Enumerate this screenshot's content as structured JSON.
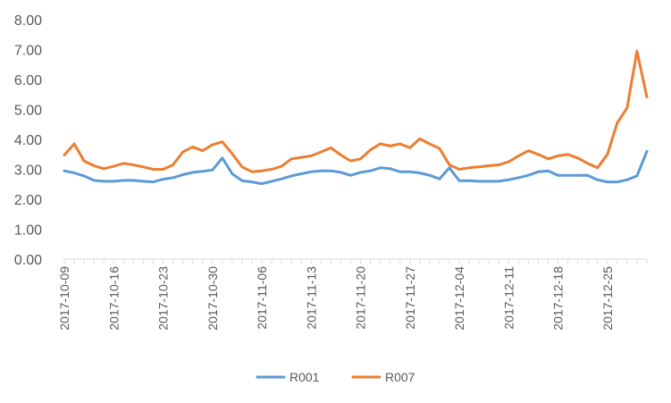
{
  "chart_data": {
    "type": "line",
    "title": "",
    "xlabel": "",
    "ylabel": "",
    "ylim": [
      0,
      8
    ],
    "y_ticks": [
      "0.00",
      "1.00",
      "2.00",
      "3.00",
      "4.00",
      "5.00",
      "6.00",
      "7.00",
      "8.00"
    ],
    "x_ticks": [
      "2017-10-09",
      "2017-10-16",
      "2017-10-23",
      "2017-10-30",
      "2017-11-06",
      "2017-11-13",
      "2017-11-20",
      "2017-11-27",
      "2017-12-04",
      "2017-12-11",
      "2017-12-18",
      "2017-12-25"
    ],
    "x": [
      "2017-10-09",
      "2017-10-10",
      "2017-10-11",
      "2017-10-12",
      "2017-10-13",
      "2017-10-16",
      "2017-10-17",
      "2017-10-18",
      "2017-10-19",
      "2017-10-20",
      "2017-10-23",
      "2017-10-24",
      "2017-10-25",
      "2017-10-26",
      "2017-10-27",
      "2017-10-30",
      "2017-10-31",
      "2017-11-01",
      "2017-11-02",
      "2017-11-03",
      "2017-11-06",
      "2017-11-07",
      "2017-11-08",
      "2017-11-09",
      "2017-11-10",
      "2017-11-13",
      "2017-11-14",
      "2017-11-15",
      "2017-11-16",
      "2017-11-17",
      "2017-11-20",
      "2017-11-21",
      "2017-11-22",
      "2017-11-23",
      "2017-11-24",
      "2017-11-27",
      "2017-11-28",
      "2017-11-29",
      "2017-11-30",
      "2017-12-01",
      "2017-12-04",
      "2017-12-05",
      "2017-12-06",
      "2017-12-07",
      "2017-12-08",
      "2017-12-11",
      "2017-12-12",
      "2017-12-13",
      "2017-12-14",
      "2017-12-15",
      "2017-12-18",
      "2017-12-19",
      "2017-12-20",
      "2017-12-21",
      "2017-12-22",
      "2017-12-25",
      "2017-12-26",
      "2017-12-27",
      "2017-12-28",
      "2017-12-29"
    ],
    "series": [
      {
        "name": "R001",
        "color": "#5B9BD5",
        "values": [
          2.95,
          2.88,
          2.78,
          2.63,
          2.6,
          2.6,
          2.63,
          2.63,
          2.6,
          2.58,
          2.67,
          2.72,
          2.82,
          2.9,
          2.93,
          2.98,
          3.38,
          2.85,
          2.62,
          2.58,
          2.52,
          2.6,
          2.68,
          2.78,
          2.85,
          2.92,
          2.95,
          2.95,
          2.9,
          2.8,
          2.9,
          2.95,
          3.05,
          3.02,
          2.92,
          2.92,
          2.88,
          2.8,
          2.68,
          3.05,
          2.62,
          2.62,
          2.6,
          2.6,
          2.6,
          2.65,
          2.72,
          2.8,
          2.92,
          2.95,
          2.8,
          2.8,
          2.8,
          2.8,
          2.65,
          2.58,
          2.58,
          2.65,
          2.78,
          3.6
        ]
      },
      {
        "name": "R007",
        "color": "#ED7D31",
        "values": [
          3.48,
          3.85,
          3.28,
          3.12,
          3.02,
          3.1,
          3.2,
          3.15,
          3.08,
          3.0,
          3.0,
          3.15,
          3.58,
          3.75,
          3.62,
          3.82,
          3.92,
          3.52,
          3.08,
          2.92,
          2.95,
          3.0,
          3.1,
          3.35,
          3.4,
          3.45,
          3.58,
          3.72,
          3.48,
          3.28,
          3.35,
          3.65,
          3.85,
          3.78,
          3.85,
          3.72,
          4.02,
          3.85,
          3.7,
          3.15,
          3.0,
          3.05,
          3.08,
          3.12,
          3.15,
          3.25,
          3.45,
          3.62,
          3.5,
          3.35,
          3.45,
          3.5,
          3.38,
          3.2,
          3.05,
          3.5,
          4.55,
          5.05,
          6.95,
          5.42
        ]
      }
    ],
    "legend_position": "bottom",
    "grid": false
  }
}
